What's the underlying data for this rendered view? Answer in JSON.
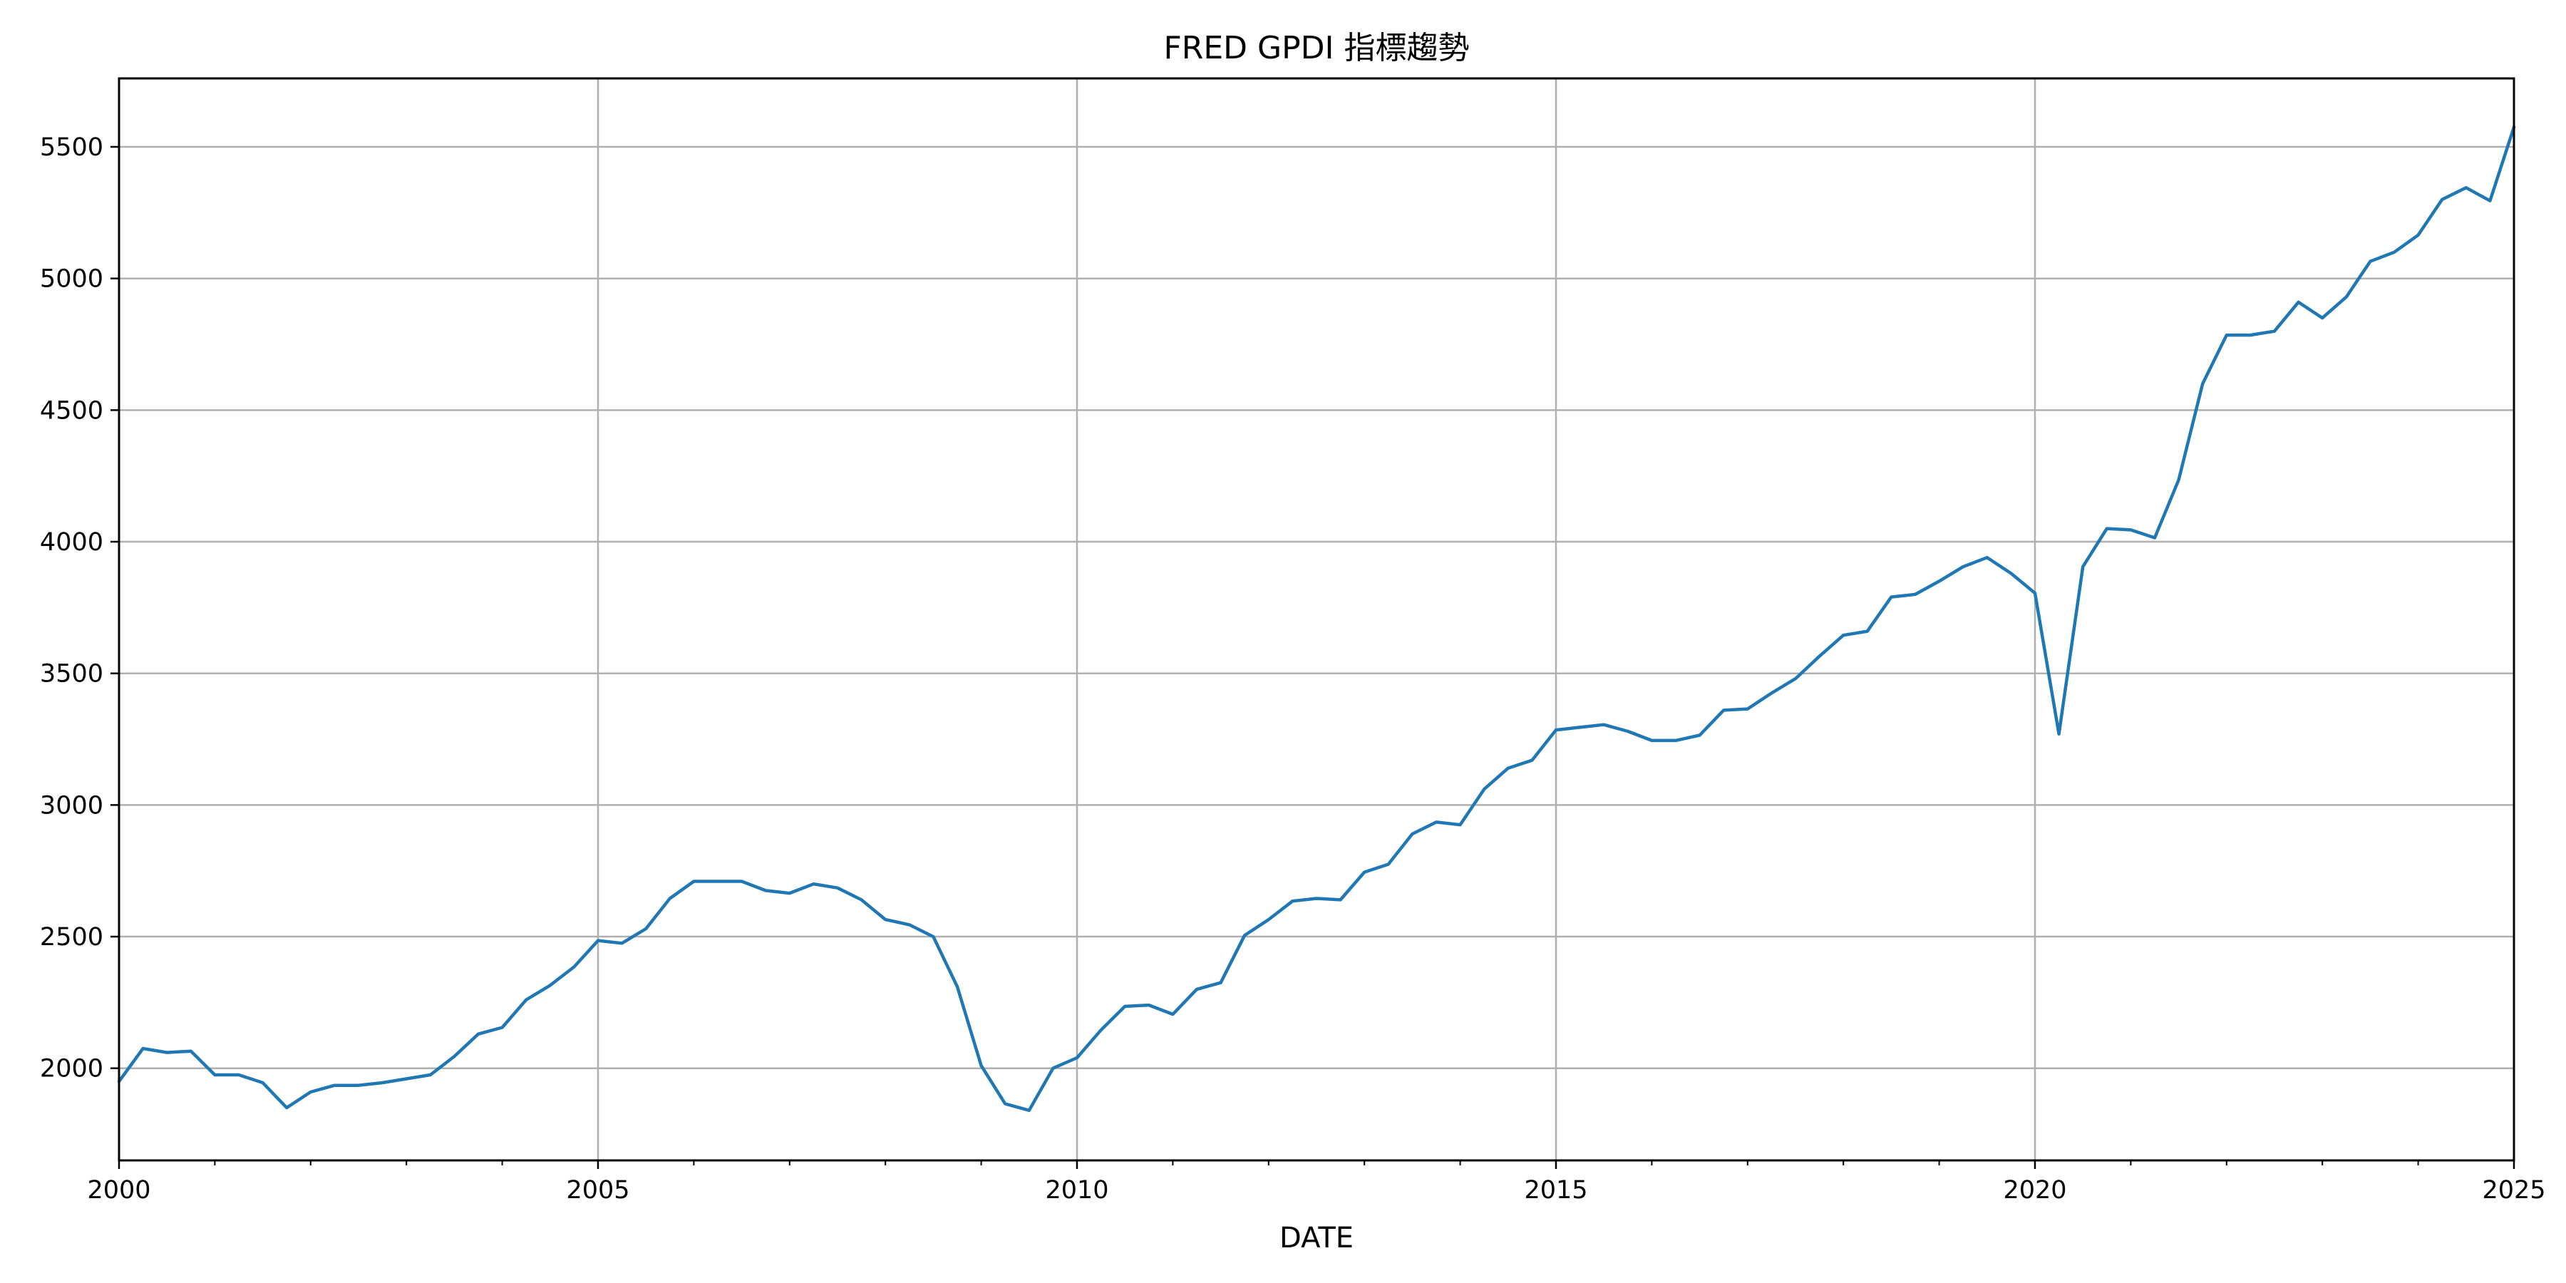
{
  "chart_data": {
    "type": "line",
    "title": "FRED GPDI 指標趨勢",
    "xlabel": "DATE",
    "ylabel": "",
    "xlim": [
      2000,
      2025
    ],
    "ylim": [
      1650,
      5760
    ],
    "grid": true,
    "x_major_ticks": [
      2000,
      2005,
      2010,
      2015,
      2020,
      2025
    ],
    "x_tick_labels": [
      "2000",
      "2005",
      "2010",
      "2015",
      "2020",
      "2025"
    ],
    "y_ticks": [
      2000,
      2500,
      3000,
      3500,
      4000,
      4500,
      5000,
      5500
    ],
    "y_tick_labels": [
      "2000",
      "2500",
      "3000",
      "3500",
      "4000",
      "4500",
      "5000",
      "5500"
    ],
    "colors": {
      "line": "#1f77b4",
      "grid": "#b0b0b0",
      "axis": "#000000"
    },
    "series": [
      {
        "x": [
          2000.0,
          2000.25,
          2000.5,
          2000.75,
          2001.0,
          2001.25,
          2001.5,
          2001.75,
          2002.0,
          2002.25,
          2002.5,
          2002.75,
          2003.0,
          2003.25,
          2003.5,
          2003.75,
          2004.0,
          2004.25,
          2004.5,
          2004.75,
          2005.0,
          2005.25,
          2005.5,
          2005.75,
          2006.0,
          2006.25,
          2006.5,
          2006.75,
          2007.0,
          2007.25,
          2007.5,
          2007.75,
          2008.0,
          2008.25,
          2008.5,
          2008.75,
          2009.0,
          2009.25,
          2009.5,
          2009.75,
          2010.0,
          2010.25,
          2010.5,
          2010.75,
          2011.0,
          2011.25,
          2011.5,
          2011.75,
          2012.0,
          2012.25,
          2012.5,
          2012.75,
          2013.0,
          2013.25,
          2013.5,
          2013.75,
          2014.0,
          2014.25,
          2014.5,
          2014.75,
          2015.0,
          2015.25,
          2015.5,
          2015.75,
          2016.0,
          2016.25,
          2016.5,
          2016.75,
          2017.0,
          2017.25,
          2017.5,
          2017.75,
          2018.0,
          2018.25,
          2018.5,
          2018.75,
          2019.0,
          2019.25,
          2019.5,
          2019.75,
          2020.0,
          2020.25,
          2020.5,
          2020.75,
          2021.0,
          2021.25,
          2021.5,
          2021.75,
          2022.0,
          2022.25,
          2022.5,
          2022.75,
          2023.0,
          2023.25,
          2023.5,
          2023.75,
          2024.0,
          2024.25,
          2024.5,
          2024.75,
          2025.0
        ],
        "values": [
          1950,
          2075,
          2060,
          2065,
          1975,
          1975,
          1945,
          1850,
          1910,
          1935,
          1935,
          1945,
          1960,
          1975,
          2045,
          2130,
          2155,
          2260,
          2315,
          2385,
          2485,
          2475,
          2530,
          2645,
          2710,
          2710,
          2710,
          2675,
          2665,
          2700,
          2685,
          2640,
          2565,
          2545,
          2500,
          2310,
          2010,
          1865,
          1840,
          2000,
          2040,
          2145,
          2235,
          2240,
          2205,
          2300,
          2325,
          2505,
          2565,
          2635,
          2645,
          2640,
          2745,
          2775,
          2890,
          2935,
          2925,
          3060,
          3140,
          3170,
          3285,
          3295,
          3305,
          3280,
          3245,
          3245,
          3265,
          3360,
          3365,
          3425,
          3480,
          3565,
          3645,
          3660,
          3790,
          3800,
          3850,
          3905,
          3940,
          3880,
          3805,
          3270,
          3905,
          4050,
          4045,
          4015,
          4235,
          4600,
          4785,
          4785,
          4800,
          4910,
          4850,
          4930,
          5065,
          5100,
          5165,
          5300,
          5345,
          5295,
          5575
        ]
      }
    ]
  }
}
